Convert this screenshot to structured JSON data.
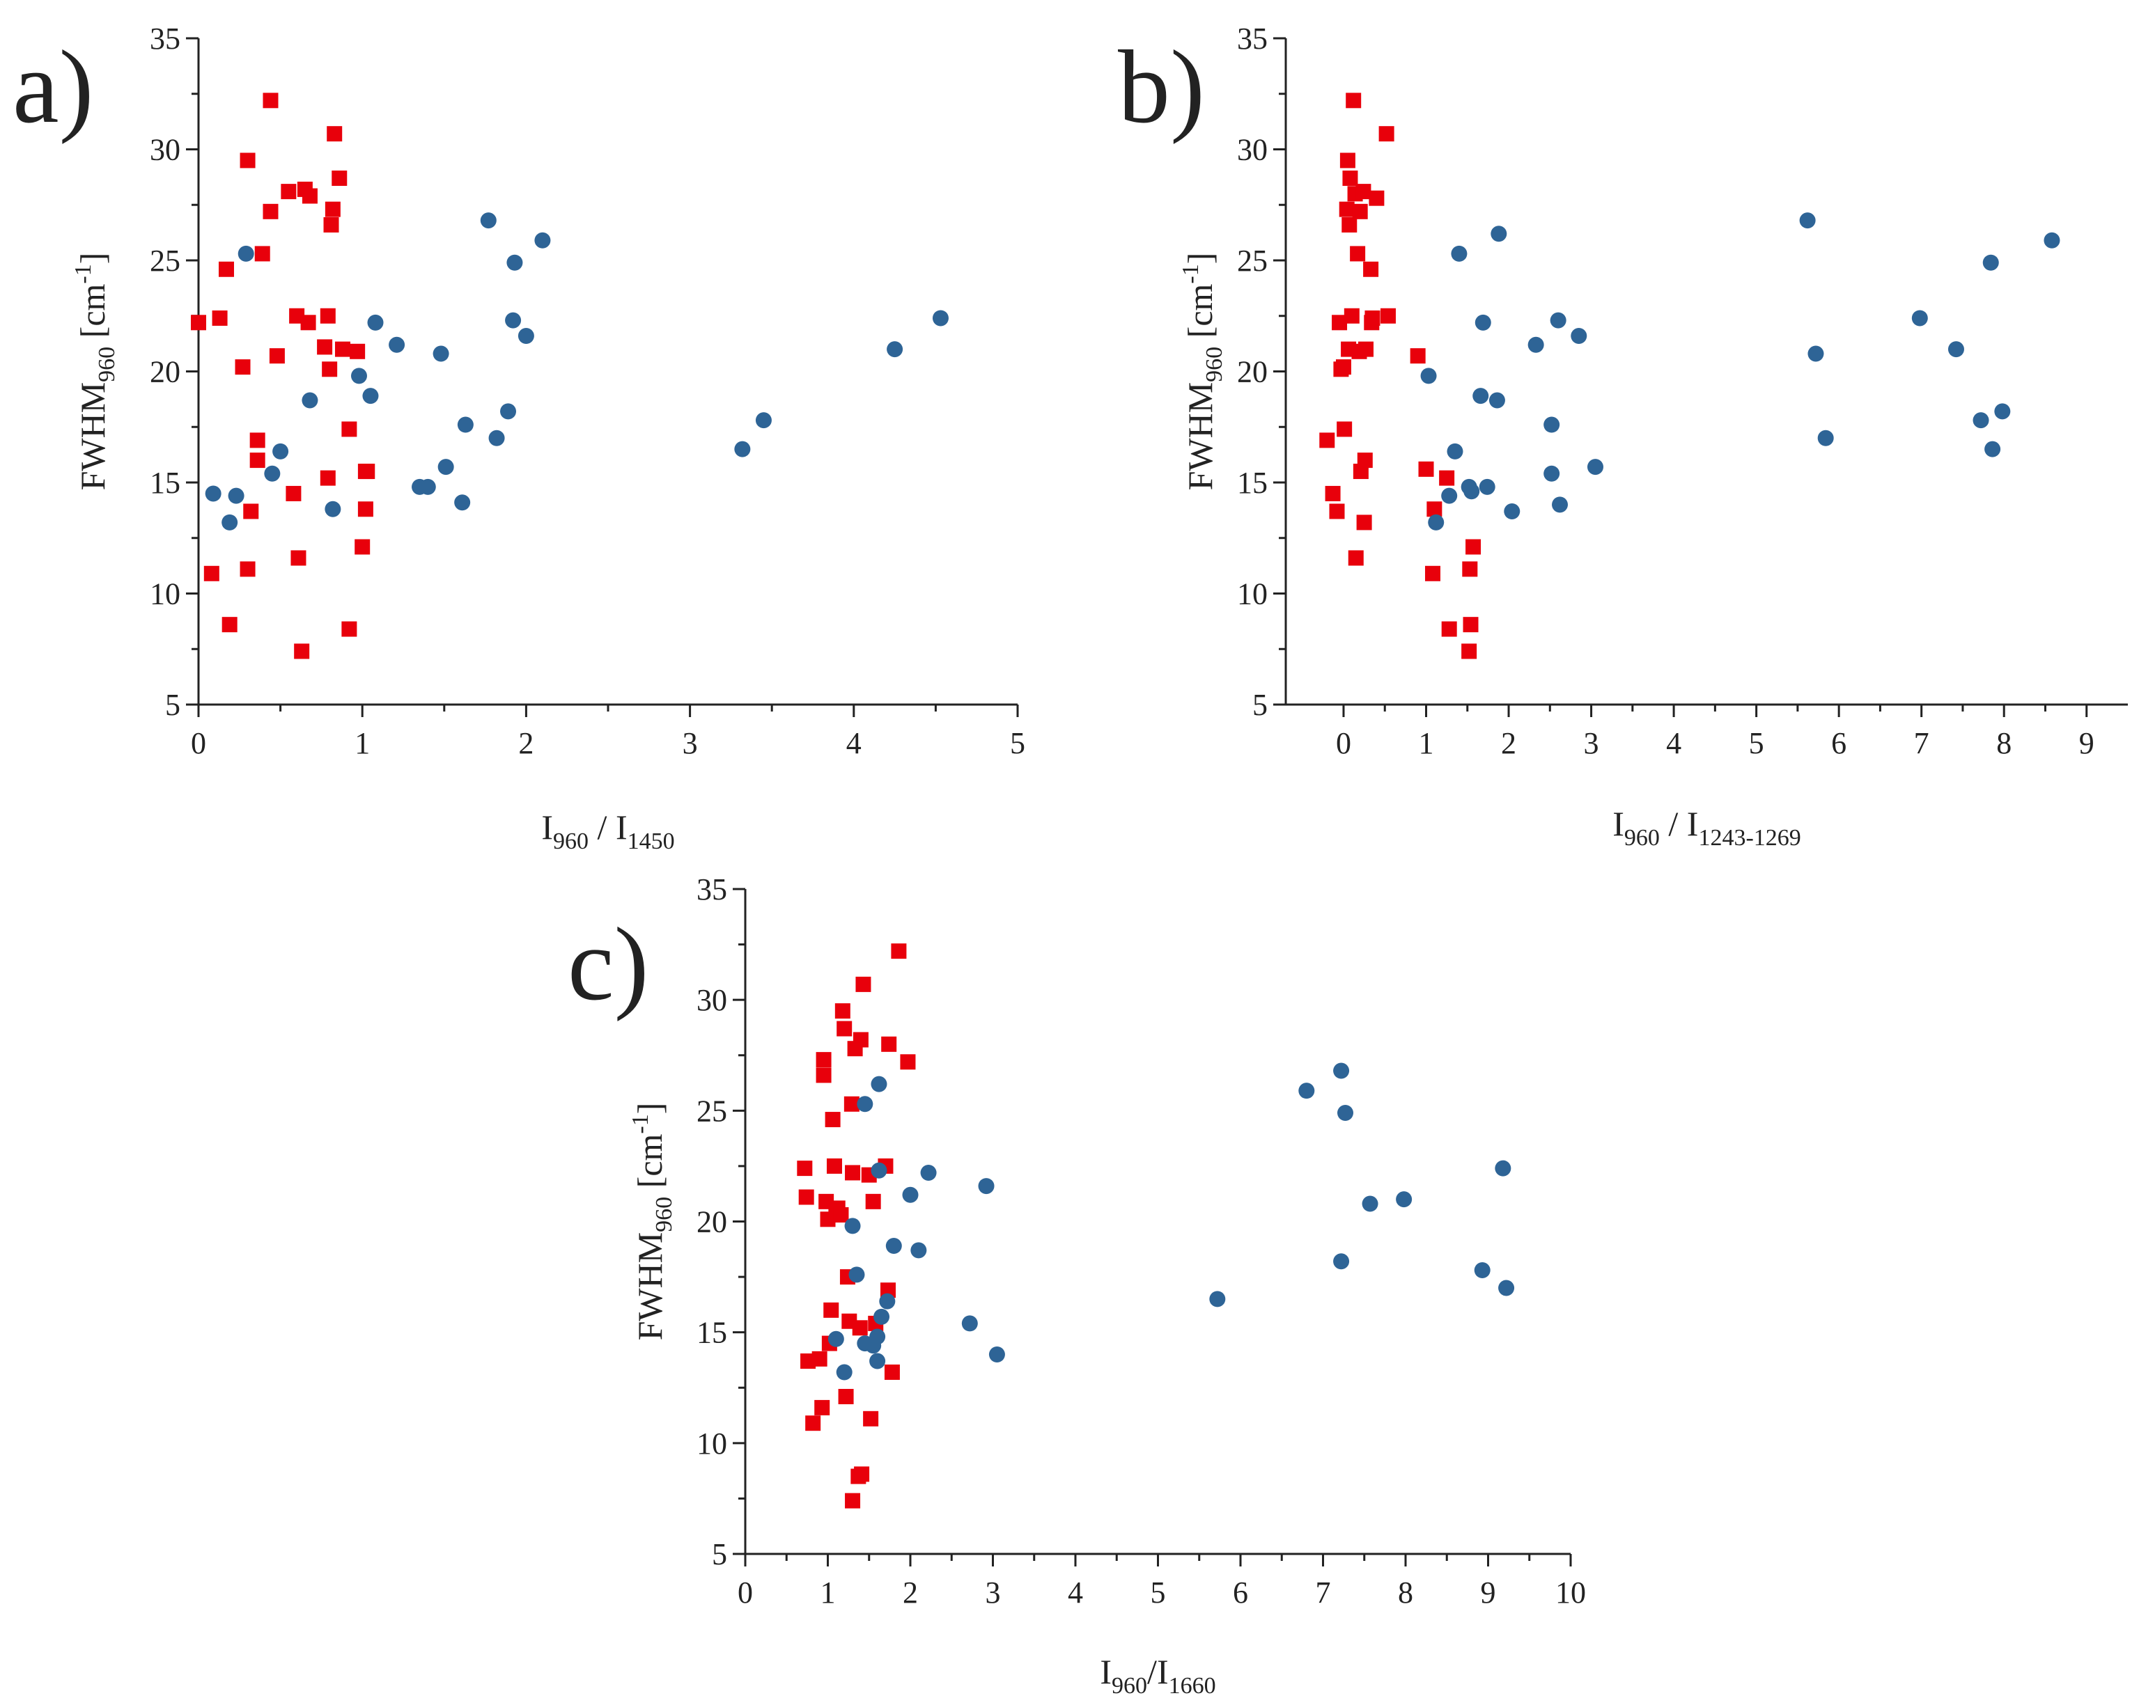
{
  "figure": {
    "colors": {
      "red_series": "#e8000b",
      "blue_series": "#2e6496",
      "axis": "#222222"
    }
  },
  "chart_data": [
    {
      "type": "scatter",
      "panel_label": "a)",
      "xlabel": {
        "main": "I",
        "sub1": "960",
        "sep": " / I",
        "sub2": "1450"
      },
      "ylabel": {
        "main": "FWHM",
        "sub": "960",
        "unit_open": " [cm",
        "sup": "-1",
        "unit_close": "]"
      },
      "xlim": [
        0,
        5
      ],
      "ylim": [
        5,
        35
      ],
      "xticks": [
        0,
        1,
        2,
        3,
        4,
        5
      ],
      "yticks": [
        5,
        10,
        15,
        20,
        25,
        30,
        35
      ],
      "series": [
        {
          "name": "red squares",
          "marker": "square",
          "color": "#e8000b",
          "points": [
            [
              0.0,
              22.2
            ],
            [
              0.08,
              10.9
            ],
            [
              0.13,
              22.4
            ],
            [
              0.17,
              24.6
            ],
            [
              0.19,
              8.6
            ],
            [
              0.27,
              20.2
            ],
            [
              0.3,
              11.1
            ],
            [
              0.3,
              29.5
            ],
            [
              0.32,
              13.7
            ],
            [
              0.36,
              16.9
            ],
            [
              0.36,
              16.0
            ],
            [
              0.39,
              25.3
            ],
            [
              0.44,
              27.2
            ],
            [
              0.44,
              32.2
            ],
            [
              0.48,
              20.7
            ],
            [
              0.55,
              28.1
            ],
            [
              0.58,
              14.5
            ],
            [
              0.6,
              22.5
            ],
            [
              0.61,
              11.6
            ],
            [
              0.63,
              7.4
            ],
            [
              0.65,
              28.2
            ],
            [
              0.67,
              22.2
            ],
            [
              0.68,
              27.9
            ],
            [
              0.77,
              21.1
            ],
            [
              0.79,
              15.2
            ],
            [
              0.79,
              22.5
            ],
            [
              0.8,
              20.1
            ],
            [
              0.81,
              26.6
            ],
            [
              0.82,
              27.3
            ],
            [
              0.83,
              30.7
            ],
            [
              0.86,
              28.7
            ],
            [
              0.88,
              21.0
            ],
            [
              0.92,
              17.4
            ],
            [
              0.92,
              8.4
            ],
            [
              0.97,
              20.9
            ],
            [
              1.0,
              12.1
            ],
            [
              1.02,
              13.8
            ],
            [
              1.02,
              15.5
            ],
            [
              1.03,
              15.5
            ]
          ]
        },
        {
          "name": "blue circles",
          "marker": "circle",
          "color": "#2e6496",
          "points": [
            [
              0.09,
              14.5
            ],
            [
              0.19,
              13.2
            ],
            [
              0.23,
              14.4
            ],
            [
              0.29,
              25.3
            ],
            [
              0.45,
              15.4
            ],
            [
              0.5,
              16.4
            ],
            [
              0.68,
              18.7
            ],
            [
              0.82,
              13.8
            ],
            [
              0.98,
              19.8
            ],
            [
              1.05,
              18.9
            ],
            [
              1.08,
              22.2
            ],
            [
              1.21,
              21.2
            ],
            [
              1.35,
              14.8
            ],
            [
              1.4,
              14.8
            ],
            [
              1.48,
              20.8
            ],
            [
              1.51,
              15.7
            ],
            [
              1.61,
              14.1
            ],
            [
              1.63,
              17.6
            ],
            [
              1.77,
              26.8
            ],
            [
              1.82,
              17.0
            ],
            [
              1.89,
              18.2
            ],
            [
              1.92,
              22.3
            ],
            [
              1.93,
              24.9
            ],
            [
              2.0,
              21.6
            ],
            [
              2.1,
              25.9
            ],
            [
              3.32,
              16.5
            ],
            [
              3.45,
              17.8
            ],
            [
              4.25,
              21.0
            ],
            [
              4.53,
              22.4
            ]
          ]
        }
      ]
    },
    {
      "type": "scatter",
      "panel_label": "b)",
      "xlabel": {
        "main": "I",
        "sub1": "960",
        "sep": " / I",
        "sub2": "1243-1269"
      },
      "ylabel": {
        "main": "FWHM",
        "sub": "960",
        "unit_open": " [cm",
        "sup": "-1",
        "unit_close": "]"
      },
      "xlim": [
        -0.7,
        9.5
      ],
      "ylim": [
        5,
        35
      ],
      "xticks": [
        0,
        1,
        2,
        3,
        4,
        5,
        6,
        7,
        8,
        9
      ],
      "yticks": [
        5,
        10,
        15,
        20,
        25,
        30,
        35
      ],
      "series": [
        {
          "name": "red squares",
          "marker": "square",
          "color": "#e8000b",
          "points": [
            [
              -0.2,
              16.9
            ],
            [
              -0.13,
              14.5
            ],
            [
              -0.08,
              13.7
            ],
            [
              -0.05,
              22.2
            ],
            [
              -0.03,
              20.1
            ],
            [
              0.0,
              20.2
            ],
            [
              0.01,
              17.4
            ],
            [
              0.04,
              27.3
            ],
            [
              0.05,
              29.5
            ],
            [
              0.06,
              21.0
            ],
            [
              0.07,
              26.6
            ],
            [
              0.08,
              28.7
            ],
            [
              0.1,
              22.5
            ],
            [
              0.12,
              32.2
            ],
            [
              0.14,
              28.0
            ],
            [
              0.15,
              11.6
            ],
            [
              0.17,
              25.3
            ],
            [
              0.19,
              20.9
            ],
            [
              0.2,
              27.2
            ],
            [
              0.21,
              15.5
            ],
            [
              0.24,
              28.1
            ],
            [
              0.25,
              13.2
            ],
            [
              0.26,
              16.0
            ],
            [
              0.27,
              21.0
            ],
            [
              0.33,
              24.6
            ],
            [
              0.34,
              22.2
            ],
            [
              0.35,
              22.4
            ],
            [
              0.4,
              27.8
            ],
            [
              0.52,
              30.7
            ],
            [
              0.54,
              22.5
            ],
            [
              0.9,
              20.7
            ],
            [
              1.0,
              15.6
            ],
            [
              1.08,
              10.9
            ],
            [
              1.1,
              13.8
            ],
            [
              1.25,
              15.2
            ],
            [
              1.28,
              8.4
            ],
            [
              1.52,
              7.4
            ],
            [
              1.53,
              11.1
            ],
            [
              1.54,
              8.6
            ],
            [
              1.57,
              12.1
            ]
          ]
        },
        {
          "name": "blue circles",
          "marker": "circle",
          "color": "#2e6496",
          "points": [
            [
              1.03,
              19.8
            ],
            [
              1.12,
              13.2
            ],
            [
              1.28,
              14.4
            ],
            [
              1.35,
              16.4
            ],
            [
              1.4,
              25.3
            ],
            [
              1.52,
              14.8
            ],
            [
              1.55,
              14.6
            ],
            [
              1.66,
              18.9
            ],
            [
              1.69,
              22.2
            ],
            [
              1.74,
              14.8
            ],
            [
              1.86,
              18.7
            ],
            [
              1.88,
              26.2
            ],
            [
              2.04,
              13.7
            ],
            [
              2.33,
              21.2
            ],
            [
              2.52,
              17.6
            ],
            [
              2.52,
              15.4
            ],
            [
              2.6,
              22.3
            ],
            [
              2.62,
              14.0
            ],
            [
              2.85,
              21.6
            ],
            [
              3.05,
              15.7
            ],
            [
              5.62,
              26.8
            ],
            [
              5.72,
              20.8
            ],
            [
              5.84,
              17.0
            ],
            [
              6.98,
              22.4
            ],
            [
              7.42,
              21.0
            ],
            [
              7.72,
              17.8
            ],
            [
              7.84,
              24.9
            ],
            [
              7.86,
              16.5
            ],
            [
              7.98,
              18.2
            ],
            [
              8.58,
              25.9
            ]
          ]
        }
      ]
    },
    {
      "type": "scatter",
      "panel_label": "c)",
      "xlabel": {
        "main": "I",
        "sub1": "960",
        "sep": "/I",
        "sub2": "1660"
      },
      "ylabel": {
        "main": "FWHM",
        "sub": "960",
        "unit_open": " [cm",
        "sup": "-1",
        "unit_close": "]"
      },
      "xlim": [
        0,
        10
      ],
      "ylim": [
        5,
        35
      ],
      "xticks": [
        0,
        1,
        2,
        3,
        4,
        5,
        6,
        7,
        8,
        9,
        10
      ],
      "yticks": [
        5,
        10,
        15,
        20,
        25,
        30,
        35
      ],
      "series": [
        {
          "name": "red squares",
          "marker": "square",
          "color": "#e8000b",
          "points": [
            [
              0.72,
              22.4
            ],
            [
              0.74,
              21.1
            ],
            [
              0.76,
              13.7
            ],
            [
              0.82,
              10.9
            ],
            [
              0.9,
              13.8
            ],
            [
              0.93,
              11.6
            ],
            [
              0.95,
              27.3
            ],
            [
              0.95,
              26.6
            ],
            [
              0.98,
              20.9
            ],
            [
              1.0,
              20.1
            ],
            [
              1.02,
              14.5
            ],
            [
              1.04,
              16.0
            ],
            [
              1.06,
              24.6
            ],
            [
              1.08,
              22.5
            ],
            [
              1.1,
              20.3
            ],
            [
              1.12,
              20.6
            ],
            [
              1.16,
              20.3
            ],
            [
              1.18,
              29.5
            ],
            [
              1.2,
              28.7
            ],
            [
              1.22,
              12.1
            ],
            [
              1.24,
              17.5
            ],
            [
              1.26,
              15.5
            ],
            [
              1.29,
              25.3
            ],
            [
              1.3,
              22.2
            ],
            [
              1.3,
              7.4
            ],
            [
              1.33,
              27.8
            ],
            [
              1.37,
              8.5
            ],
            [
              1.39,
              15.2
            ],
            [
              1.4,
              28.2
            ],
            [
              1.41,
              8.6
            ],
            [
              1.43,
              30.7
            ],
            [
              1.5,
              22.1
            ],
            [
              1.52,
              11.1
            ],
            [
              1.55,
              20.9
            ],
            [
              1.58,
              15.4
            ],
            [
              1.7,
              22.5
            ],
            [
              1.73,
              16.9
            ],
            [
              1.74,
              28.0
            ],
            [
              1.78,
              13.2
            ],
            [
              1.86,
              32.2
            ],
            [
              1.97,
              27.2
            ]
          ]
        },
        {
          "name": "blue circles",
          "marker": "circle",
          "color": "#2e6496",
          "points": [
            [
              1.1,
              14.7
            ],
            [
              1.2,
              13.2
            ],
            [
              1.3,
              19.8
            ],
            [
              1.35,
              17.6
            ],
            [
              1.45,
              14.5
            ],
            [
              1.45,
              25.3
            ],
            [
              1.55,
              14.4
            ],
            [
              1.6,
              14.8
            ],
            [
              1.6,
              13.7
            ],
            [
              1.62,
              26.2
            ],
            [
              1.62,
              22.3
            ],
            [
              1.65,
              15.7
            ],
            [
              1.72,
              16.4
            ],
            [
              1.8,
              18.9
            ],
            [
              2.0,
              21.2
            ],
            [
              2.1,
              18.7
            ],
            [
              2.22,
              22.2
            ],
            [
              2.72,
              15.4
            ],
            [
              2.92,
              21.6
            ],
            [
              3.05,
              14.0
            ],
            [
              5.72,
              16.5
            ],
            [
              6.8,
              25.9
            ],
            [
              7.22,
              18.2
            ],
            [
              7.22,
              26.8
            ],
            [
              7.27,
              24.9
            ],
            [
              7.57,
              20.8
            ],
            [
              7.98,
              21.0
            ],
            [
              8.93,
              17.8
            ],
            [
              9.18,
              22.4
            ],
            [
              9.22,
              17.0
            ]
          ]
        }
      ]
    }
  ]
}
